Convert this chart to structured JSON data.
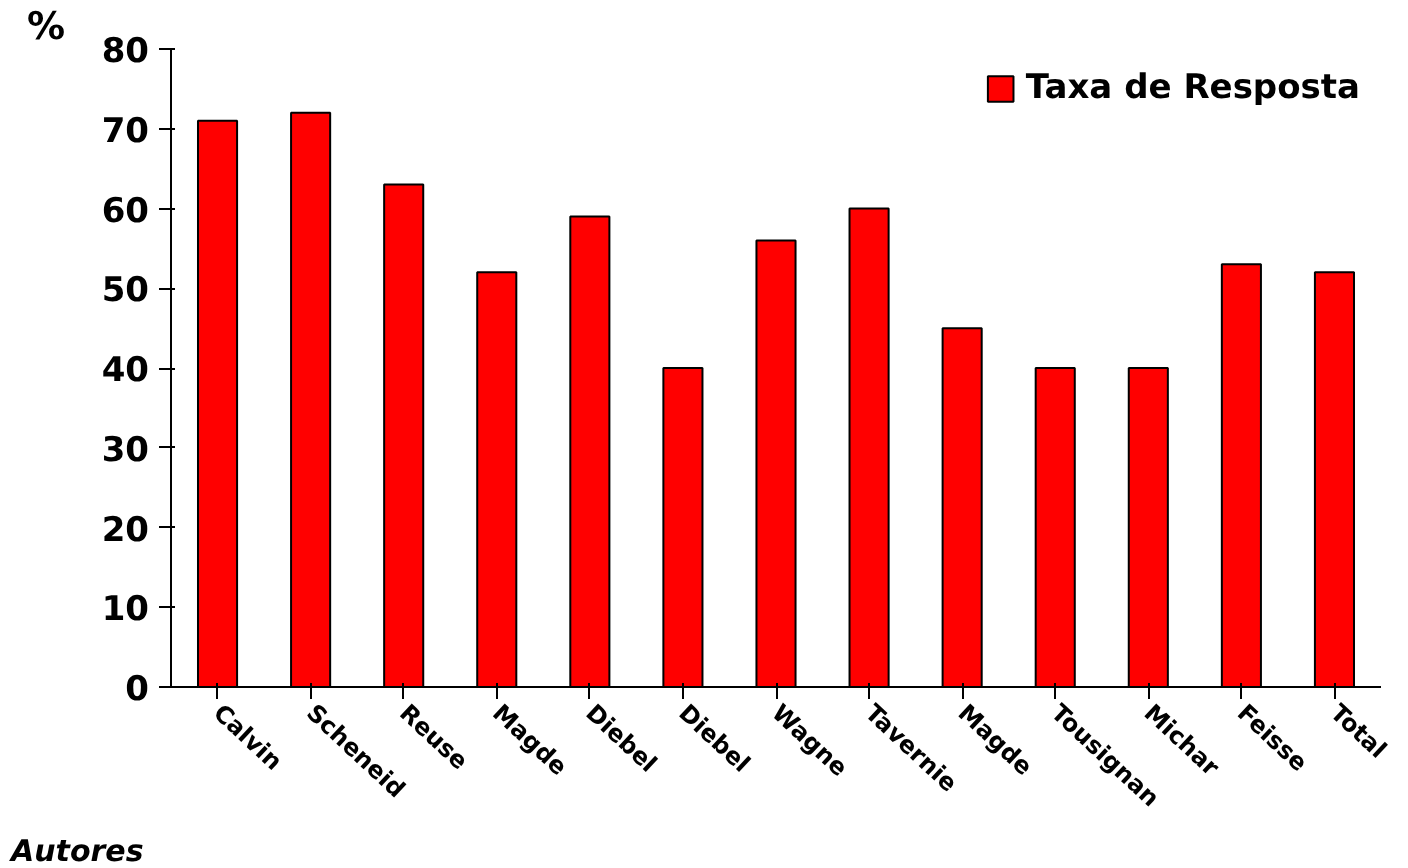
{
  "chart_data": {
    "type": "bar",
    "ylabel": "%",
    "xlabel": "Autores",
    "categories": [
      "Calvin",
      "Scheneid",
      "Reuse",
      "Magde",
      "Diebel",
      "Diebel",
      "Wagne",
      "Tavernie",
      "Magde",
      "Tousignan",
      "Michar",
      "Feisse",
      "Total"
    ],
    "series": [
      {
        "name": "Taxa de Resposta",
        "color": "#ff0000",
        "values": [
          71,
          72,
          63,
          52,
          59,
          40,
          56,
          60,
          45,
          40,
          40,
          53,
          52
        ]
      }
    ],
    "ylim": [
      0,
      80
    ],
    "yticks": [
      0,
      10,
      20,
      30,
      40,
      50,
      60,
      70,
      80
    ],
    "grid": false,
    "legend": "top right"
  }
}
